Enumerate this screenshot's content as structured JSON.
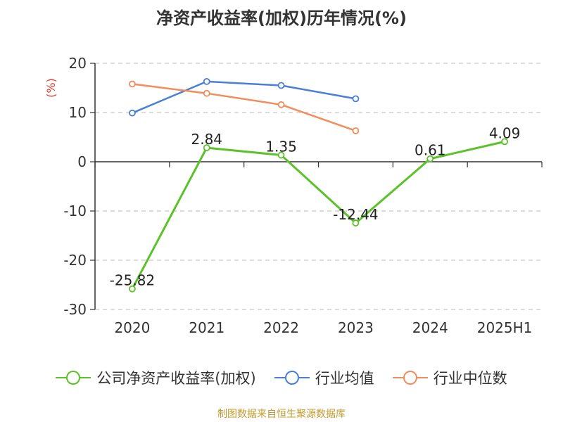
{
  "chart_data": {
    "type": "line",
    "title": "净资产收益率(加权)历年情况(%)",
    "ylabel": "(%)",
    "categories": [
      "2020",
      "2021",
      "2022",
      "2023",
      "2024",
      "2025H1"
    ],
    "ylim": [
      -30,
      20
    ],
    "yticks": [
      20,
      10,
      0,
      -10,
      -20,
      -30
    ],
    "grid": true,
    "legend_position": "bottom",
    "series": [
      {
        "name": "公司净资产收益率(加权)",
        "color": "#5cc22a",
        "values": [
          -25.82,
          2.84,
          1.35,
          -12.44,
          0.61,
          4.09
        ],
        "labels": [
          "-25.82",
          "2.84",
          "1.35",
          "-12.44",
          "0.61",
          "4.09"
        ]
      },
      {
        "name": "行业均值",
        "color": "#4a7fd6",
        "values": [
          9.9,
          16.3,
          15.5,
          12.8,
          null,
          null
        ]
      },
      {
        "name": "行业中位数",
        "color": "#f28c5a",
        "values": [
          15.8,
          13.9,
          11.6,
          6.3,
          null,
          null
        ]
      }
    ]
  },
  "source": "制图数据来自恒生聚源数据库"
}
